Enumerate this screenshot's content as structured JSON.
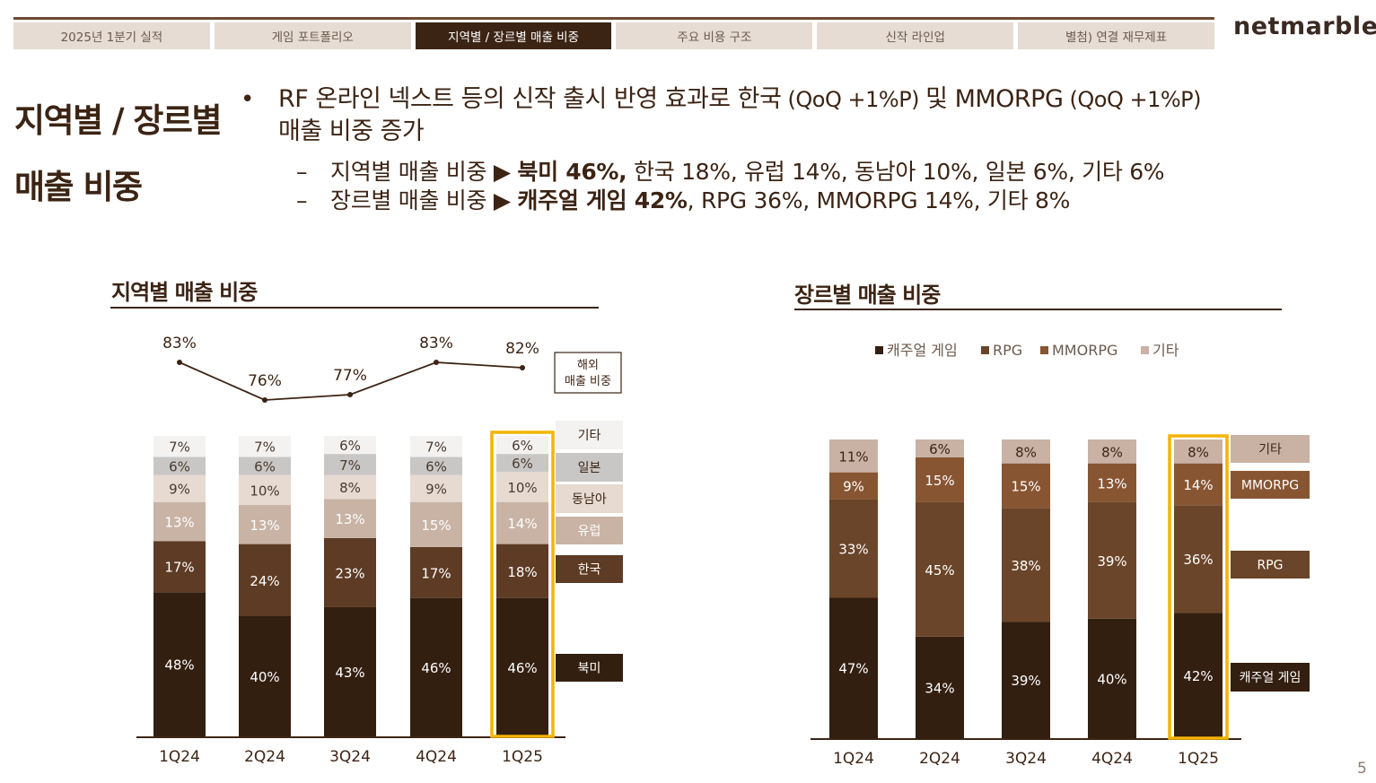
{
  "nav": {
    "tabs": [
      {
        "label": "2025년 1분기 실적",
        "active": false
      },
      {
        "label": "게임 포트폴리오",
        "active": false
      },
      {
        "label": "지역별 / 장르별 매출 비중",
        "active": true
      },
      {
        "label": "주요 비용 구조",
        "active": false
      },
      {
        "label": "신작 라인업",
        "active": false
      },
      {
        "label": "별첨) 연결 재무제표",
        "active": false
      }
    ],
    "logo": "netmarble"
  },
  "page": {
    "title_line1": "지역별 / 장르별",
    "title_line2": "매출 비중",
    "page_number": "5"
  },
  "summary": {
    "bullet_dot": "•",
    "bullet_part1": "RF 온라인 넥스트 등의 신작 출시 반영 효과로 한국",
    "bullet_part2": " (QoQ +1%P) ",
    "bullet_part3": "및 MMORPG",
    "bullet_part4": " (QoQ +1%P)",
    "bullet_line2": "매출 비중 증가",
    "dash": "–",
    "sub1_label": "지역별 매출 비중 ▶ ",
    "sub1_bold": "북미 46%,",
    "sub1_rest": " 한국 18%, 유럽 14%, 동남아 10%, 일본 6%, 기타 6%",
    "sub2_label": "장르별 매출 비중 ▶ ",
    "sub2_bold": "캐주얼 게임 42%",
    "sub2_rest": ", RPG 36%, MMORPG 14%, 기타 8%"
  },
  "colors": {
    "dark1": "#331f10",
    "dark2": "#5d3b24",
    "mid": "#6b4529",
    "mmorpg": "#885532",
    "europe": "#c8b3a5",
    "sea": "#e6dad1",
    "japan": "#c9c7c5",
    "etc_region": "#f3f2f1",
    "etc_genre": "#c9b2a4",
    "highlight": "#f4b400"
  },
  "chart_data": [
    {
      "type": "bar",
      "title": "지역별 매출 비중",
      "categories": [
        "1Q24",
        "2Q24",
        "3Q24",
        "4Q24",
        "1Q25"
      ],
      "stacked": true,
      "highlight_category": "1Q25",
      "series": [
        {
          "name": "북미",
          "values": [
            48,
            40,
            43,
            46,
            46
          ],
          "color_key": "dark1"
        },
        {
          "name": "한국",
          "values": [
            17,
            24,
            23,
            17,
            18
          ],
          "color_key": "dark2"
        },
        {
          "name": "유럽",
          "values": [
            13,
            13,
            13,
            15,
            14
          ],
          "color_key": "europe"
        },
        {
          "name": "동남아",
          "values": [
            9,
            10,
            8,
            9,
            10
          ],
          "color_key": "sea"
        },
        {
          "name": "일본",
          "values": [
            6,
            6,
            7,
            6,
            6
          ],
          "color_key": "japan"
        },
        {
          "name": "기타",
          "values": [
            7,
            7,
            6,
            7,
            6
          ],
          "color_key": "etc_region"
        }
      ],
      "line_series": {
        "name_line1": "해외",
        "name_line2": "매출 비중",
        "values": [
          83,
          76,
          77,
          83,
          82
        ]
      },
      "value_suffix": "%"
    },
    {
      "type": "bar",
      "title": "장르별 매출 비중",
      "categories": [
        "1Q24",
        "2Q24",
        "3Q24",
        "4Q24",
        "1Q25"
      ],
      "stacked": true,
      "highlight_category": "1Q25",
      "legend": [
        "캐주얼 게임",
        "RPG",
        "MMORPG",
        "기타"
      ],
      "legend_position": "top",
      "series": [
        {
          "name": "캐주얼 게임",
          "values": [
            47,
            34,
            39,
            40,
            42
          ],
          "color_key": "dark1"
        },
        {
          "name": "RPG",
          "values": [
            33,
            45,
            38,
            39,
            36
          ],
          "color_key": "mid"
        },
        {
          "name": "MMORPG",
          "values": [
            9,
            15,
            15,
            13,
            14
          ],
          "color_key": "mmorpg"
        },
        {
          "name": "기타",
          "values": [
            11,
            6,
            8,
            8,
            8
          ],
          "color_key": "etc_genre"
        }
      ],
      "value_suffix": "%"
    }
  ]
}
